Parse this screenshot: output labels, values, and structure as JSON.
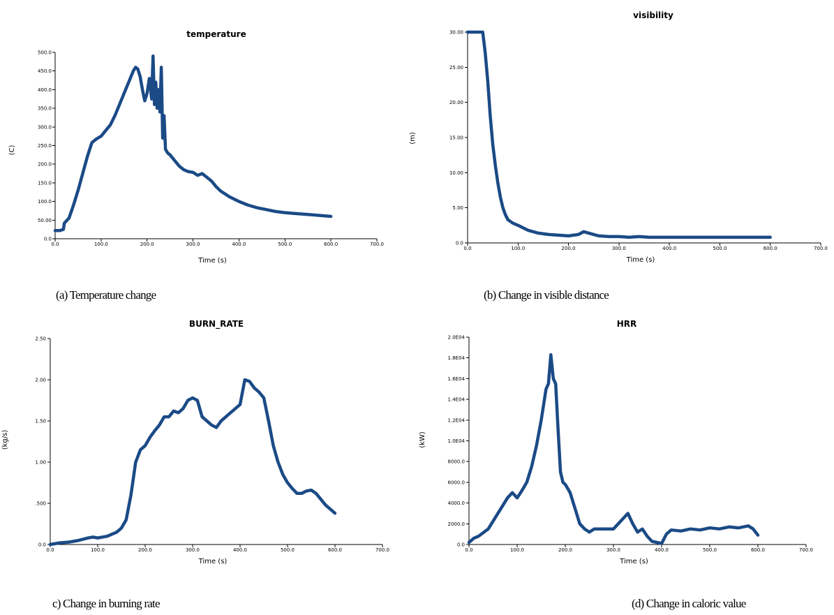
{
  "chart_data": [
    {
      "type": "line",
      "title": "temperature",
      "xlabel": "Time (s)",
      "ylabel": "(C)",
      "xlim": [
        0,
        700
      ],
      "ylim": [
        0,
        500
      ],
      "xticks": [
        0,
        100,
        200,
        300,
        400,
        500,
        600,
        700
      ],
      "xtick_labels": [
        "0.0",
        "100.0",
        "200.0",
        "300.0",
        "400.0",
        "500.0",
        "600.0",
        "700.0"
      ],
      "yticks": [
        0,
        50,
        100,
        150,
        200,
        250,
        300,
        350,
        400,
        450,
        500
      ],
      "ytick_labels": [
        "0.0",
        "50.00",
        "100.0",
        "150.0",
        "200.0",
        "250.0",
        "300.0",
        "350.0",
        "400.0",
        "450.0",
        "500.0"
      ],
      "grid": false,
      "color": "#1b4a86",
      "series": [
        {
          "x": [
            0,
            10,
            18,
            20,
            30,
            40,
            50,
            60,
            70,
            80,
            90,
            100,
            110,
            120,
            130,
            140,
            150,
            160,
            170,
            175,
            180,
            185,
            190,
            195,
            200,
            205,
            210,
            213,
            216,
            219,
            222,
            225,
            228,
            231,
            234,
            237,
            240,
            245,
            250,
            260,
            270,
            280,
            290,
            300,
            310,
            320,
            330,
            340,
            350,
            360,
            380,
            400,
            420,
            440,
            460,
            480,
            500,
            520,
            540,
            560,
            580,
            600
          ],
          "y": [
            22,
            22,
            25,
            42,
            55,
            90,
            130,
            175,
            220,
            258,
            268,
            275,
            290,
            305,
            330,
            360,
            390,
            420,
            450,
            460,
            455,
            435,
            400,
            370,
            390,
            430,
            375,
            490,
            360,
            420,
            350,
            400,
            340,
            460,
            270,
            330,
            240,
            230,
            225,
            210,
            195,
            185,
            180,
            178,
            170,
            175,
            165,
            155,
            140,
            128,
            112,
            100,
            90,
            83,
            78,
            73,
            70,
            68,
            66,
            64,
            62,
            60
          ]
        }
      ]
    },
    {
      "type": "line",
      "title": "visibility",
      "xlabel": "Time (s)",
      "ylabel": "(m)",
      "xlim": [
        0,
        700
      ],
      "ylim": [
        0,
        30
      ],
      "xticks": [
        0,
        100,
        200,
        300,
        400,
        500,
        600,
        700
      ],
      "xtick_labels": [
        "0.0",
        "100.0",
        "200.0",
        "300.0",
        "400.0",
        "500.0",
        "600.0",
        "700.0"
      ],
      "yticks": [
        0,
        5,
        10,
        15,
        20,
        25,
        30
      ],
      "ytick_labels": [
        "0.0",
        "5.00",
        "10.00",
        "15.00",
        "20.00",
        "25.00",
        "30.00"
      ],
      "grid": false,
      "color": "#1b4a86",
      "series": [
        {
          "x": [
            0,
            10,
            20,
            30,
            35,
            40,
            45,
            50,
            55,
            60,
            65,
            70,
            75,
            80,
            90,
            100,
            120,
            140,
            160,
            180,
            200,
            220,
            230,
            240,
            250,
            260,
            280,
            300,
            320,
            340,
            360,
            380,
            400,
            450,
            500,
            550,
            600
          ],
          "y": [
            30,
            30,
            30,
            30,
            27,
            23,
            18,
            14,
            11,
            8.5,
            6.5,
            5,
            4,
            3.3,
            2.8,
            2.5,
            1.8,
            1.4,
            1.2,
            1.1,
            1.0,
            1.2,
            1.6,
            1.4,
            1.2,
            1.0,
            0.9,
            0.9,
            0.8,
            0.9,
            0.8,
            0.8,
            0.8,
            0.8,
            0.8,
            0.8,
            0.8
          ]
        }
      ]
    },
    {
      "type": "line",
      "title": "BURN_RATE",
      "xlabel": "Time (s)",
      "ylabel": "(kg/s)",
      "xlim": [
        0,
        700
      ],
      "ylim": [
        0,
        2.5
      ],
      "xticks": [
        0,
        100,
        200,
        300,
        400,
        500,
        600,
        700
      ],
      "xtick_labels": [
        "0.0",
        "100.0",
        "200.0",
        "300.0",
        "400.0",
        "500.0",
        "600.0",
        "700.0"
      ],
      "yticks": [
        0,
        0.5,
        1.0,
        1.5,
        2.0,
        2.5
      ],
      "ytick_labels": [
        "0.0",
        ".500",
        "1.00",
        "1.50",
        "2.00",
        "2.50"
      ],
      "grid": false,
      "color": "#1b4a86",
      "series": [
        {
          "x": [
            0,
            20,
            40,
            60,
            80,
            90,
            100,
            120,
            140,
            150,
            160,
            170,
            180,
            190,
            200,
            210,
            220,
            230,
            240,
            250,
            260,
            270,
            280,
            290,
            300,
            310,
            320,
            330,
            340,
            350,
            360,
            370,
            380,
            390,
            400,
            410,
            420,
            430,
            440,
            450,
            460,
            470,
            480,
            490,
            500,
            510,
            520,
            530,
            540,
            550,
            560,
            570,
            580,
            590,
            600
          ],
          "y": [
            0,
            0.02,
            0.03,
            0.05,
            0.08,
            0.09,
            0.08,
            0.1,
            0.15,
            0.2,
            0.3,
            0.6,
            1.0,
            1.15,
            1.2,
            1.3,
            1.38,
            1.45,
            1.55,
            1.55,
            1.62,
            1.6,
            1.65,
            1.75,
            1.78,
            1.75,
            1.55,
            1.5,
            1.45,
            1.42,
            1.5,
            1.55,
            1.6,
            1.65,
            1.7,
            2.0,
            1.98,
            1.9,
            1.85,
            1.78,
            1.5,
            1.2,
            1.0,
            0.85,
            0.75,
            0.68,
            0.62,
            0.62,
            0.65,
            0.66,
            0.62,
            0.55,
            0.48,
            0.43,
            0.38
          ]
        }
      ]
    },
    {
      "type": "line",
      "title": "HRR",
      "xlabel": "Time (s)",
      "ylabel": "(kW)",
      "xlim": [
        0,
        700
      ],
      "ylim": [
        0,
        20000
      ],
      "xticks": [
        0,
        100,
        200,
        300,
        400,
        500,
        600,
        700
      ],
      "xtick_labels": [
        "0.0",
        "100.0",
        "200.0",
        "300.0",
        "400.0",
        "500.0",
        "600.0",
        "700.0"
      ],
      "yticks": [
        0,
        2000,
        4000,
        6000,
        8000,
        10000,
        12000,
        14000,
        16000,
        18000,
        20000
      ],
      "ytick_labels": [
        "0.0",
        "2000.0",
        "4000.0",
        "6000.0",
        "8000.0",
        "1.0E04",
        "1.2E04",
        "1.4E04",
        "1.6E04",
        "1.8E04",
        "2.0E04"
      ],
      "grid": false,
      "color": "#1b4a86",
      "series": [
        {
          "x": [
            0,
            10,
            20,
            40,
            60,
            80,
            90,
            100,
            110,
            120,
            130,
            140,
            150,
            160,
            165,
            170,
            175,
            180,
            185,
            190,
            195,
            200,
            210,
            220,
            230,
            240,
            250,
            260,
            280,
            300,
            310,
            320,
            330,
            340,
            350,
            360,
            370,
            380,
            390,
            400,
            410,
            420,
            440,
            460,
            480,
            500,
            520,
            540,
            560,
            580,
            590,
            600
          ],
          "y": [
            200,
            600,
            800,
            1500,
            3000,
            4500,
            5000,
            4500,
            5200,
            6000,
            7500,
            9500,
            12000,
            15000,
            15500,
            18300,
            16000,
            15500,
            11000,
            7000,
            6000,
            5800,
            5000,
            3500,
            2000,
            1500,
            1200,
            1500,
            1500,
            1500,
            2000,
            2500,
            3000,
            2000,
            1200,
            1500,
            800,
            300,
            200,
            100,
            1000,
            1400,
            1300,
            1500,
            1400,
            1600,
            1500,
            1700,
            1600,
            1800,
            1500,
            900
          ]
        }
      ]
    }
  ],
  "captions": [
    "(a) Temperature change",
    "(b) Change in visible distance",
    "c) Change in burning rate",
    "(d) Change in caloric value"
  ]
}
